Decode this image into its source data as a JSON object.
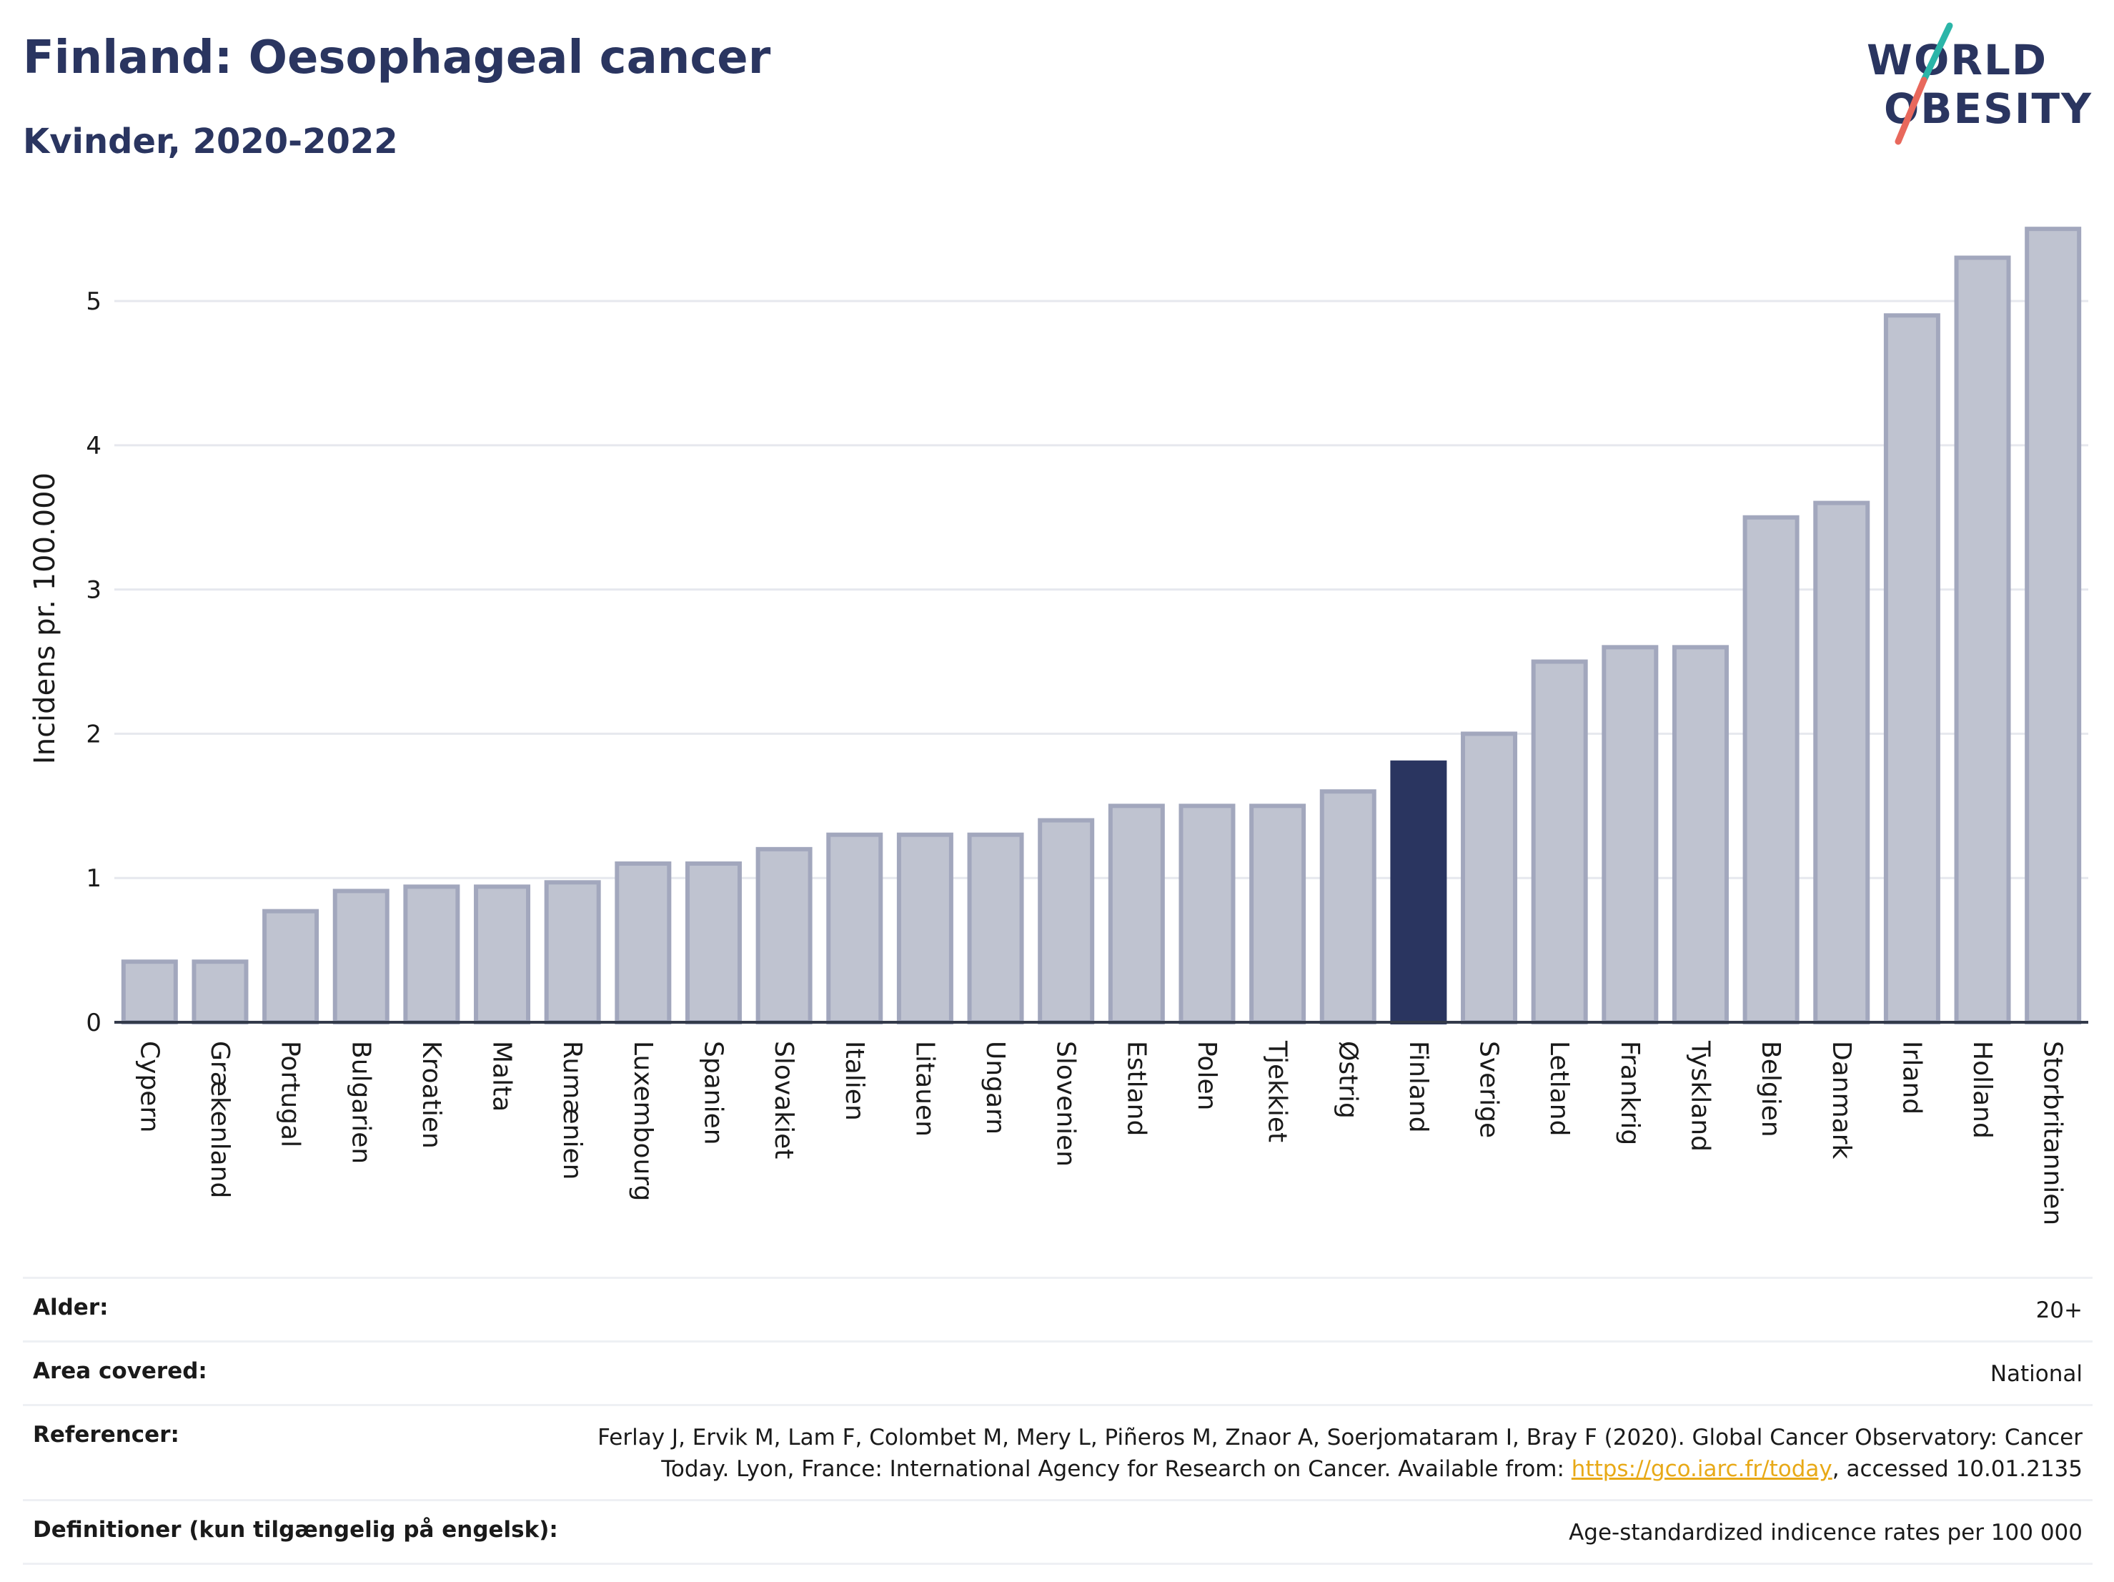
{
  "header": {
    "title": "Finland: Oesophageal cancer",
    "subtitle": "Kvinder, 2020-2022"
  },
  "logo": {
    "line1": "WORLD",
    "line2": "OBESITY",
    "accent_colors": [
      "#2bb5a8",
      "#e8685c"
    ]
  },
  "colors": {
    "bar_default": "#bfc3d0",
    "bar_border": "#a2a7bd",
    "bar_highlight": "#2a3560",
    "title": "#2a3560",
    "link": "#e8a917"
  },
  "chart_data": {
    "type": "bar",
    "ylabel": "Incidens pr. 100.000",
    "ylim": [
      0,
      5.6
    ],
    "yticks": [
      0,
      1,
      2,
      3,
      4,
      5
    ],
    "grid": true,
    "highlight": "Finland",
    "categories": [
      "Cypern",
      "Grækenland",
      "Portugal",
      "Bulgarien",
      "Kroatien",
      "Malta",
      "Rumænien",
      "Luxembourg",
      "Spanien",
      "Slovakiet",
      "Italien",
      "Litauen",
      "Ungarn",
      "Slovenien",
      "Estland",
      "Polen",
      "Tjekkiet",
      "Østrig",
      "Finland",
      "Sverige",
      "Letland",
      "Frankrig",
      "Tyskland",
      "Belgien",
      "Danmark",
      "Irland",
      "Holland",
      "Storbritannien"
    ],
    "values": [
      0.42,
      0.42,
      0.77,
      0.91,
      0.94,
      0.94,
      0.97,
      1.1,
      1.1,
      1.2,
      1.3,
      1.3,
      1.3,
      1.4,
      1.5,
      1.5,
      1.5,
      1.6,
      1.8,
      2.0,
      2.5,
      2.6,
      2.6,
      3.5,
      3.6,
      4.9,
      5.3,
      5.5
    ]
  },
  "info_table": {
    "age_label": "Alder:",
    "age_value": "20+",
    "area_label": "Area covered:",
    "area_value": "National",
    "ref_label": "Referencer:",
    "ref_text_1": "Ferlay J, Ervik M, Lam F, Colombet M, Mery L, Piñeros M, Znaor A, Soerjomataram I, Bray F (2020). Global Cancer Observatory: Cancer",
    "ref_text_2a": "Today. Lyon, France: International Agency for Research on Cancer. Available from: ",
    "ref_link": "https://gco.iarc.fr/today",
    "ref_text_2b": ", accessed 10.01.2135",
    "def_label": "Definitioner (kun tilgængelig på engelsk):",
    "def_value": "Age-standardized indicence rates per 100 000"
  }
}
